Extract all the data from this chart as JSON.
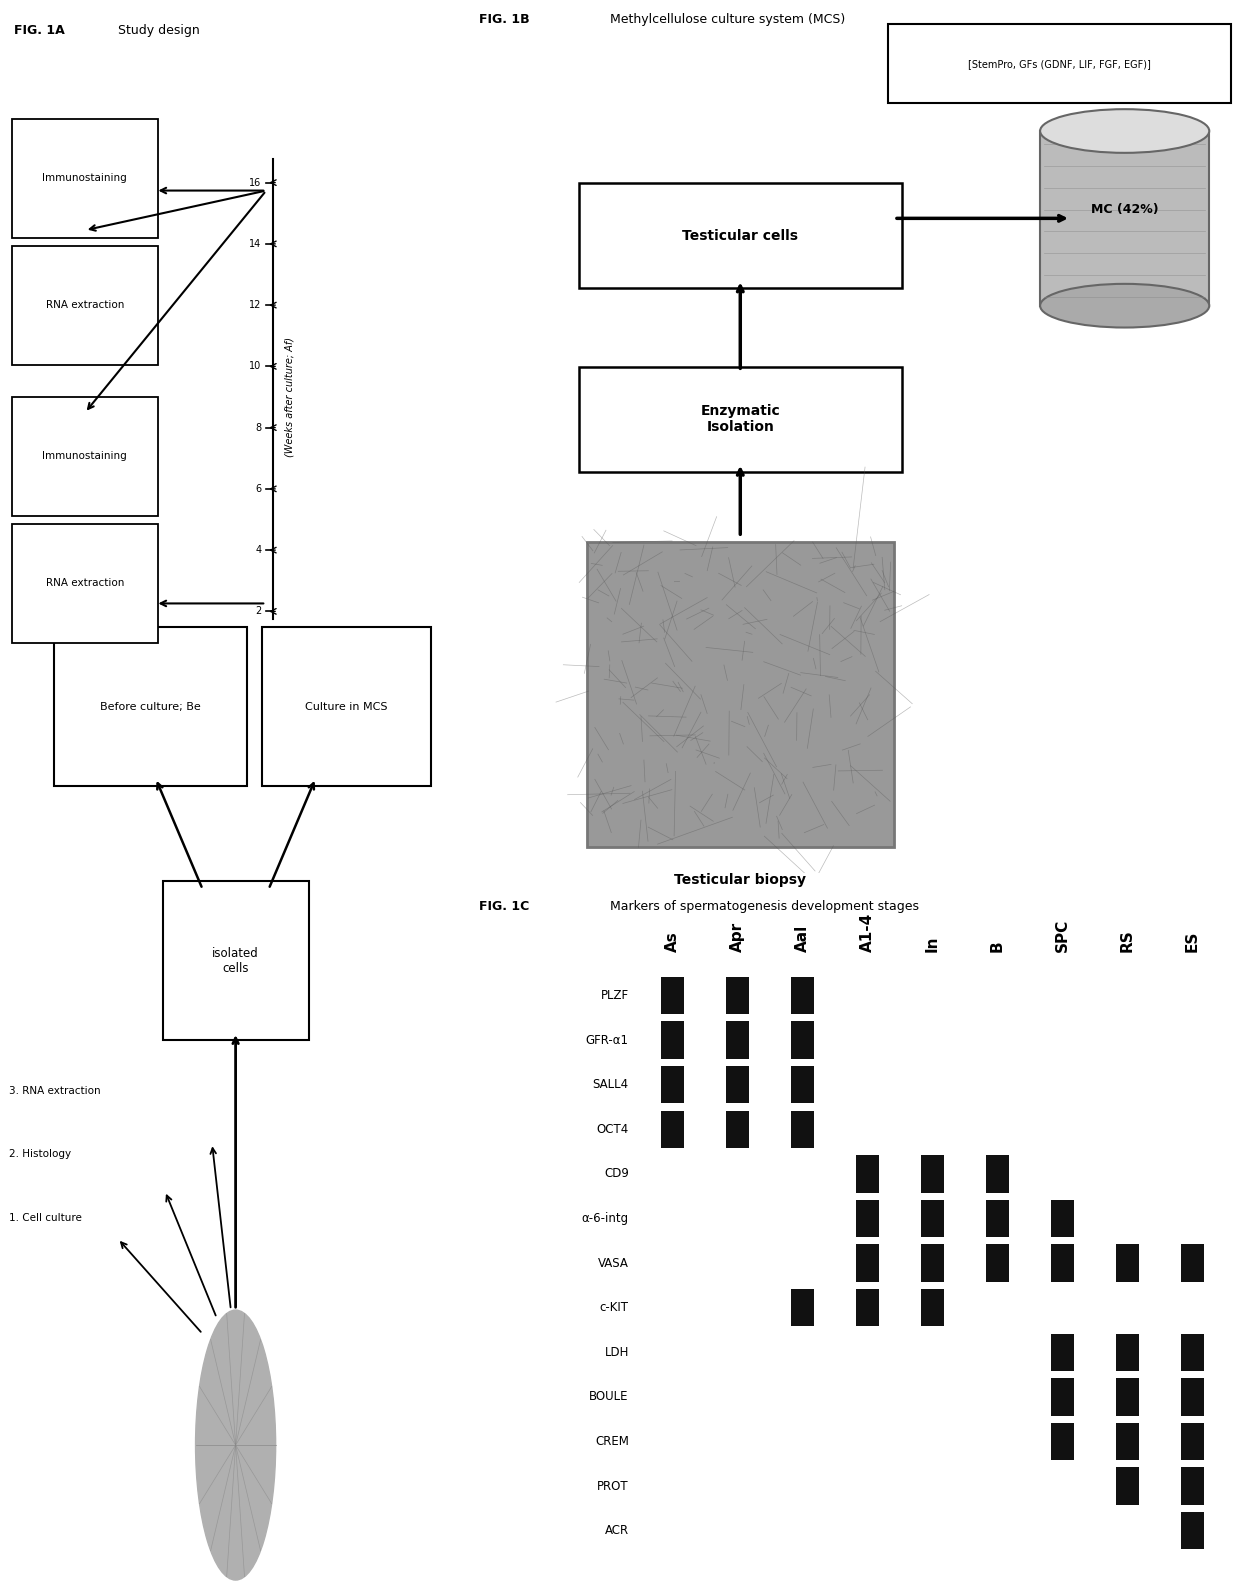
{
  "fig1a_label": "FIG. 1A",
  "fig1a_sublabel": "Study design",
  "fig1b_label": "FIG. 1B",
  "fig1b_sublabel": "Methylcellulose culture system (MCS)",
  "fig1c_label": "FIG. 1C",
  "fig1c_sublabel": "Markers of spermatogenesis development stages",
  "stages": [
    "As",
    "Apr",
    "Aal",
    "A1-4",
    "In",
    "B",
    "SPC",
    "RS",
    "ES"
  ],
  "markers": [
    "PLZF",
    "GFR-α1",
    "SALL4",
    "OCT4",
    "CD9",
    "α-6-intg",
    "VASA",
    "c-KIT",
    "LDH",
    "BOULE",
    "CREM",
    "PROT",
    "ACR"
  ],
  "marker_presence": {
    "PLZF": [
      1,
      1,
      1,
      0,
      0,
      0,
      0,
      0,
      0
    ],
    "GFR-α1": [
      1,
      1,
      1,
      0,
      0,
      0,
      0,
      0,
      0
    ],
    "SALL4": [
      1,
      1,
      1,
      0,
      0,
      0,
      0,
      0,
      0
    ],
    "OCT4": [
      1,
      1,
      1,
      0,
      0,
      0,
      0,
      0,
      0
    ],
    "CD9": [
      0,
      0,
      0,
      1,
      1,
      1,
      0,
      0,
      0
    ],
    "α-6-intg": [
      0,
      0,
      0,
      1,
      1,
      1,
      1,
      0,
      0
    ],
    "VASA": [
      0,
      0,
      0,
      1,
      1,
      1,
      1,
      1,
      1
    ],
    "c-KIT": [
      0,
      0,
      1,
      1,
      1,
      0,
      0,
      0,
      0
    ],
    "LDH": [
      0,
      0,
      0,
      0,
      0,
      0,
      1,
      1,
      1
    ],
    "BOULE": [
      0,
      0,
      0,
      0,
      0,
      0,
      1,
      1,
      1
    ],
    "CREM": [
      0,
      0,
      0,
      0,
      0,
      0,
      1,
      1,
      1
    ],
    "PROT": [
      0,
      0,
      0,
      0,
      0,
      0,
      0,
      1,
      1
    ],
    "ACR": [
      0,
      0,
      0,
      0,
      0,
      0,
      0,
      0,
      1
    ]
  },
  "bar_color": "#111111",
  "background_color": "#ffffff",
  "weeks_labels": [
    "2",
    "4",
    "6",
    "8",
    "10",
    "12",
    "14",
    "16"
  ],
  "gray_circle": "#b0b0b0",
  "gray_image": "#999999",
  "gray_cylinder": "#aaaaaa",
  "box_edge": "#000000"
}
